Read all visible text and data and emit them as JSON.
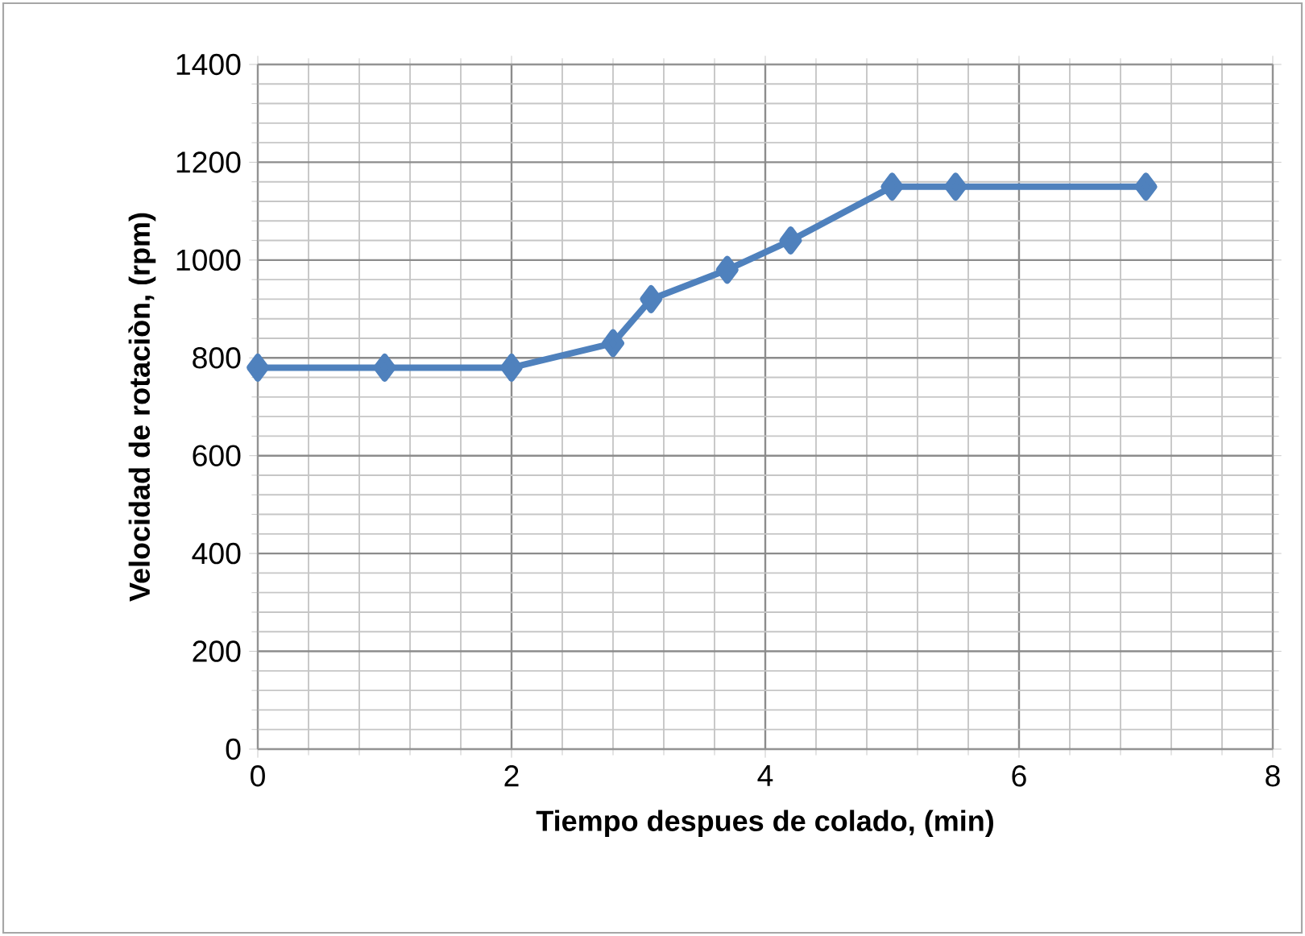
{
  "chart_data": {
    "type": "line",
    "xlabel": "Tiempo despues de colado, (min)",
    "ylabel": "Velocidad de rotaciòn, (rpm)",
    "x": [
      0,
      1,
      2,
      2.8,
      3.1,
      3.7,
      4.2,
      5,
      5.5,
      7
    ],
    "series": [
      {
        "color": "#4f81bd",
        "values": [
          780,
          780,
          780,
          830,
          920,
          980,
          1040,
          1150,
          1150,
          1150
        ]
      }
    ],
    "xlim": [
      0,
      8
    ],
    "ylim": [
      0,
      1400
    ],
    "xticks": [
      0,
      2,
      4,
      6,
      8
    ],
    "yticks": [
      0,
      200,
      400,
      600,
      800,
      1000,
      1200,
      1400
    ],
    "grid": true,
    "marker": "diamond",
    "line_style": "solid"
  }
}
